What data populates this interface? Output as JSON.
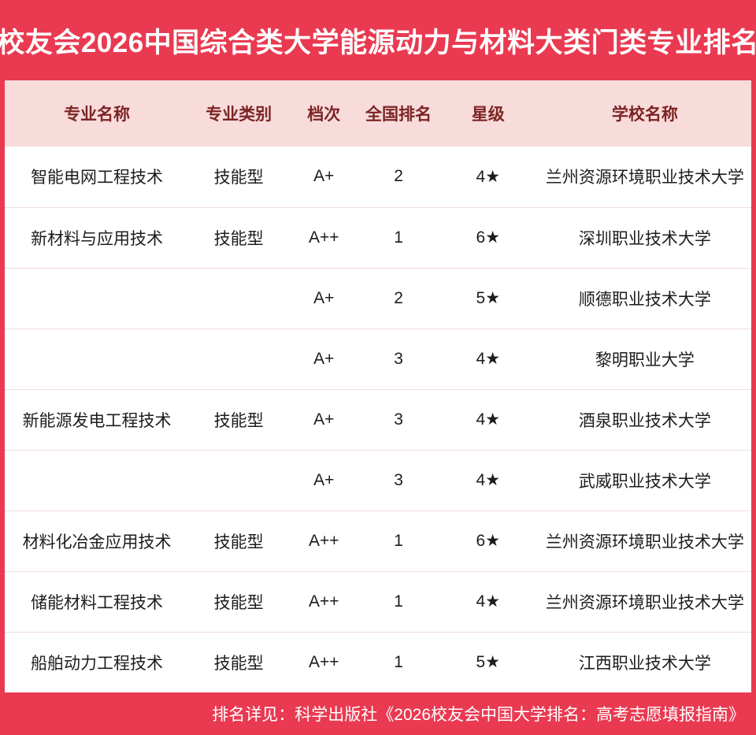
{
  "title": "校友会2026中国综合类大学能源动力与材料大类门类专业排名",
  "table": {
    "columns": [
      "专业名称",
      "专业类别",
      "档次",
      "全国排名",
      "星级",
      "学校名称"
    ],
    "rows": [
      [
        "智能电网工程技术",
        "技能型",
        "A+",
        "2",
        "4★",
        "兰州资源环境职业技术大学"
      ],
      [
        "新材料与应用技术",
        "技能型",
        "A++",
        "1",
        "6★",
        "深圳职业技术大学"
      ],
      [
        "",
        "",
        "A+",
        "2",
        "5★",
        "顺德职业技术大学"
      ],
      [
        "",
        "",
        "A+",
        "3",
        "4★",
        "黎明职业大学"
      ],
      [
        "新能源发电工程技术",
        "技能型",
        "A+",
        "3",
        "4★",
        "酒泉职业技术大学"
      ],
      [
        "",
        "",
        "A+",
        "3",
        "4★",
        "武威职业技术大学"
      ],
      [
        "材料化冶金应用技术",
        "技能型",
        "A++",
        "1",
        "6★",
        "兰州资源环境职业技术大学"
      ],
      [
        "储能材料工程技术",
        "技能型",
        "A++",
        "1",
        "4★",
        "兰州资源环境职业技术大学"
      ],
      [
        "船舶动力工程技术",
        "技能型",
        "A++",
        "1",
        "5★",
        "江西职业技术大学"
      ]
    ]
  },
  "footer": {
    "text": "排名详见：科学出版社《2026校友会中国大学排名：高考志愿填报指南》"
  },
  "colors": {
    "accent_red": "#e93a51",
    "table_header_bg": "#f8dbdb",
    "table_header_text": "#7c2524",
    "body_text": "#1d1d1d",
    "divider": "#f0dcdc"
  }
}
